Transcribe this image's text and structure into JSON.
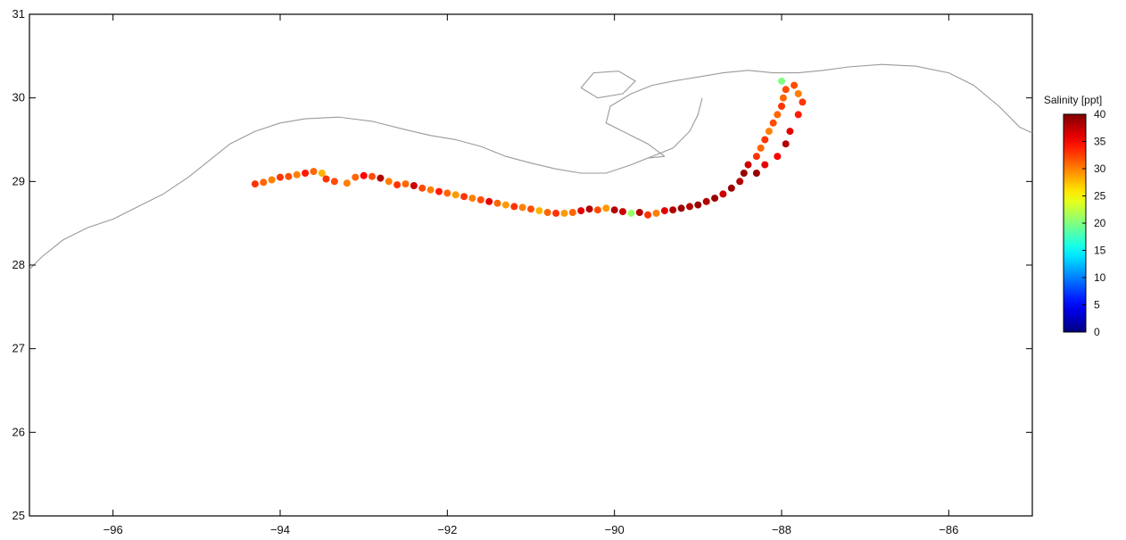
{
  "chart_data": {
    "type": "scatter",
    "title": "",
    "xlabel": "",
    "ylabel": "",
    "xlim": [
      -97,
      -85
    ],
    "ylim": [
      25,
      31
    ],
    "x_ticks": [
      -96,
      -94,
      -92,
      -90,
      -88,
      -86
    ],
    "x_tick_labels": [
      "−96",
      "−94",
      "−92",
      "−90",
      "−88",
      "−86"
    ],
    "y_ticks": [
      25,
      26,
      27,
      28,
      29,
      30,
      31
    ],
    "y_tick_labels": [
      "25",
      "26",
      "27",
      "28",
      "29",
      "30",
      "31"
    ],
    "grid": false,
    "colorbar": {
      "title": "Salinity [ppt]",
      "min": 0,
      "max": 40,
      "ticks": [
        0,
        5,
        10,
        15,
        20,
        25,
        30,
        35,
        40
      ],
      "tick_labels": [
        "0",
        "5",
        "10",
        "15",
        "20",
        "25",
        "30",
        "35",
        "40"
      ],
      "colormap": "jet",
      "placement": "right"
    },
    "coastline": {
      "color": "#9a9a9a",
      "points": [
        [
          -97.0,
          27.95
        ],
        [
          -96.85,
          28.1
        ],
        [
          -96.6,
          28.3
        ],
        [
          -96.3,
          28.45
        ],
        [
          -96.0,
          28.55
        ],
        [
          -95.7,
          28.7
        ],
        [
          -95.4,
          28.85
        ],
        [
          -95.1,
          29.05
        ],
        [
          -94.85,
          29.25
        ],
        [
          -94.6,
          29.45
        ],
        [
          -94.3,
          29.6
        ],
        [
          -94.0,
          29.7
        ],
        [
          -93.7,
          29.75
        ],
        [
          -93.3,
          29.77
        ],
        [
          -92.9,
          29.72
        ],
        [
          -92.5,
          29.62
        ],
        [
          -92.2,
          29.55
        ],
        [
          -91.9,
          29.5
        ],
        [
          -91.6,
          29.42
        ],
        [
          -91.3,
          29.3
        ],
        [
          -91.0,
          29.22
        ],
        [
          -90.7,
          29.15
        ],
        [
          -90.4,
          29.1
        ],
        [
          -90.1,
          29.1
        ],
        [
          -89.8,
          29.2
        ],
        [
          -89.6,
          29.28
        ],
        [
          -89.4,
          29.3
        ]
      ],
      "inner_points": [
        [
          -89.4,
          29.3
        ],
        [
          -89.6,
          29.45
        ],
        [
          -89.9,
          29.6
        ],
        [
          -90.1,
          29.7
        ],
        [
          -90.05,
          29.9
        ],
        [
          -89.8,
          30.05
        ],
        [
          -89.55,
          30.15
        ],
        [
          -89.3,
          30.2
        ],
        [
          -89.0,
          30.25
        ],
        [
          -88.7,
          30.3
        ],
        [
          -88.4,
          30.33
        ],
        [
          -88.1,
          30.3
        ],
        [
          -87.8,
          30.3
        ],
        [
          -87.5,
          30.33
        ],
        [
          -87.2,
          30.37
        ],
        [
          -86.8,
          30.4
        ],
        [
          -86.4,
          30.38
        ],
        [
          -86.0,
          30.3
        ],
        [
          -85.7,
          30.15
        ],
        [
          -85.4,
          29.9
        ],
        [
          -85.15,
          29.65
        ],
        [
          -85.0,
          29.58
        ]
      ],
      "delta_points": [
        [
          -89.6,
          29.28
        ],
        [
          -89.3,
          29.4
        ],
        [
          -89.1,
          29.6
        ],
        [
          -89.0,
          29.8
        ],
        [
          -88.95,
          30.0
        ]
      ],
      "lake_points": [
        [
          -90.4,
          30.12
        ],
        [
          -90.2,
          30.0
        ],
        [
          -89.9,
          30.05
        ],
        [
          -89.75,
          30.2
        ],
        [
          -89.95,
          30.32
        ],
        [
          -90.25,
          30.3
        ],
        [
          -90.4,
          30.12
        ]
      ]
    },
    "series": [
      {
        "values": [
          [
            -94.3,
            28.97,
            33
          ],
          [
            -94.2,
            28.99,
            31
          ],
          [
            -94.1,
            29.02,
            30
          ],
          [
            -94.0,
            29.05,
            33
          ],
          [
            -93.9,
            29.06,
            32
          ],
          [
            -93.8,
            29.08,
            30
          ],
          [
            -93.7,
            29.1,
            34
          ],
          [
            -93.6,
            29.12,
            31
          ],
          [
            -93.5,
            29.1,
            28
          ],
          [
            -93.45,
            29.03,
            33
          ],
          [
            -93.35,
            29.0,
            32
          ],
          [
            -93.2,
            28.98,
            30
          ],
          [
            -93.1,
            29.05,
            31
          ],
          [
            -93.0,
            29.07,
            35
          ],
          [
            -92.9,
            29.06,
            32
          ],
          [
            -92.8,
            29.04,
            38
          ],
          [
            -92.7,
            29.0,
            30
          ],
          [
            -92.6,
            28.96,
            33
          ],
          [
            -92.5,
            28.97,
            31
          ],
          [
            -92.4,
            28.95,
            37
          ],
          [
            -92.3,
            28.92,
            32
          ],
          [
            -92.2,
            28.9,
            30
          ],
          [
            -92.1,
            28.88,
            34
          ],
          [
            -92.0,
            28.86,
            31
          ],
          [
            -91.9,
            28.84,
            29
          ],
          [
            -91.8,
            28.82,
            33
          ],
          [
            -91.7,
            28.8,
            30
          ],
          [
            -91.6,
            28.78,
            32
          ],
          [
            -91.5,
            28.76,
            36
          ],
          [
            -91.4,
            28.74,
            31
          ],
          [
            -91.3,
            28.72,
            29
          ],
          [
            -91.2,
            28.7,
            33
          ],
          [
            -91.1,
            28.69,
            30
          ],
          [
            -91.0,
            28.67,
            32
          ],
          [
            -90.9,
            28.65,
            28
          ],
          [
            -90.8,
            28.63,
            31
          ],
          [
            -90.7,
            28.62,
            33
          ],
          [
            -90.6,
            28.62,
            29
          ],
          [
            -90.5,
            28.63,
            31
          ],
          [
            -90.4,
            28.65,
            36
          ],
          [
            -90.3,
            28.67,
            38
          ],
          [
            -90.2,
            28.66,
            32
          ],
          [
            -90.1,
            28.68,
            29
          ],
          [
            -90.0,
            28.66,
            38
          ],
          [
            -89.9,
            28.64,
            37
          ],
          [
            -89.8,
            28.62,
            21
          ],
          [
            -89.7,
            28.63,
            38
          ],
          [
            -89.6,
            28.6,
            33
          ],
          [
            -89.5,
            28.62,
            30
          ],
          [
            -89.4,
            28.65,
            36
          ],
          [
            -89.3,
            28.66,
            38
          ],
          [
            -89.2,
            28.68,
            39
          ],
          [
            -89.1,
            28.7,
            38
          ],
          [
            -89.0,
            28.72,
            39
          ],
          [
            -88.9,
            28.76,
            38
          ],
          [
            -88.8,
            28.8,
            39
          ],
          [
            -88.7,
            28.85,
            37
          ],
          [
            -88.6,
            28.92,
            39
          ],
          [
            -88.5,
            29.0,
            38
          ],
          [
            -88.45,
            29.1,
            39
          ],
          [
            -88.4,
            29.2,
            37
          ],
          [
            -88.3,
            29.3,
            33
          ],
          [
            -88.25,
            29.4,
            31
          ],
          [
            -88.2,
            29.5,
            33
          ],
          [
            -88.15,
            29.6,
            30
          ],
          [
            -88.1,
            29.7,
            32
          ],
          [
            -88.05,
            29.8,
            31
          ],
          [
            -88.0,
            29.9,
            33
          ],
          [
            -87.98,
            30.0,
            31
          ],
          [
            -87.95,
            30.1,
            32
          ],
          [
            -88.0,
            30.2,
            20
          ],
          [
            -87.85,
            30.15,
            32
          ],
          [
            -87.8,
            30.05,
            30
          ],
          [
            -87.75,
            29.95,
            33
          ],
          [
            -87.8,
            29.8,
            34
          ],
          [
            -87.9,
            29.6,
            36
          ],
          [
            -87.95,
            29.45,
            38
          ],
          [
            -88.05,
            29.3,
            35
          ],
          [
            -88.2,
            29.2,
            36
          ],
          [
            -88.3,
            29.1,
            39
          ]
        ]
      }
    ]
  }
}
